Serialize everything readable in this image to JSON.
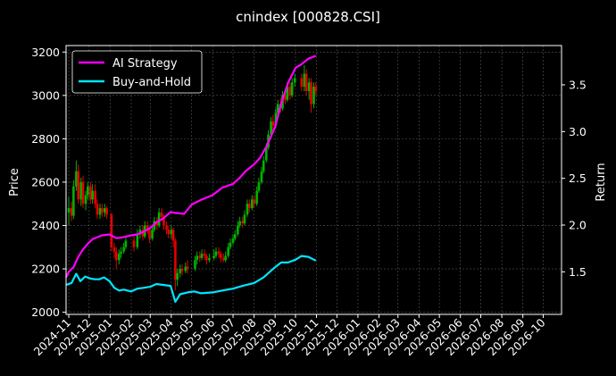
{
  "chart_data": {
    "type": "candlestick+line",
    "title": "cnindex [000828.CSI]",
    "ylabel_left": "Price",
    "ylabel_right": "Return",
    "xlabel": "",
    "ylim_left": [
      1990,
      3230
    ],
    "yticks_left": [
      2000,
      2200,
      2400,
      2600,
      2800,
      3000,
      3200
    ],
    "ylim_right": [
      1.045,
      3.92
    ],
    "yticks_right": [
      "1.5",
      "2.0",
      "2.5",
      "3.0",
      "3.5"
    ],
    "xlim": [
      "2024-10-28",
      "2026-10-28"
    ],
    "xticks": [
      "2024-11",
      "2024-12",
      "2025-01",
      "2025-02",
      "2025-03",
      "2025-04",
      "2025-05",
      "2025-06",
      "2025-07",
      "2025-08",
      "2025-09",
      "2025-10",
      "2025-11",
      "2025-12",
      "2026-01",
      "2026-02",
      "2026-03",
      "2026-04",
      "2026-05",
      "2026-06",
      "2026-07",
      "2026-08",
      "2026-09",
      "2026-10"
    ],
    "grid": true,
    "legend_position": "top-left",
    "colors": {
      "background": "#000000",
      "up": "#00b300",
      "down": "#e60000",
      "ai_strategy": "#ff00ff",
      "buy_and_hold": "#00e5ff",
      "grid": "#555555",
      "text": "#ffffff"
    },
    "series": [
      {
        "name": "AI Strategy",
        "axis": "right",
        "points": [
          [
            "2024-10-28",
            1.44
          ],
          [
            "2024-11-01",
            1.5
          ],
          [
            "2024-11-08",
            1.55
          ],
          [
            "2024-11-15",
            1.66
          ],
          [
            "2024-11-22",
            1.74
          ],
          [
            "2024-11-29",
            1.8
          ],
          [
            "2024-12-06",
            1.85
          ],
          [
            "2024-12-13",
            1.87
          ],
          [
            "2024-12-20",
            1.89
          ],
          [
            "2024-12-31",
            1.9
          ],
          [
            "2025-01-10",
            1.86
          ],
          [
            "2025-01-20",
            1.87
          ],
          [
            "2025-02-01",
            1.89
          ],
          [
            "2025-02-10",
            1.9
          ],
          [
            "2025-02-20",
            1.93
          ],
          [
            "2025-03-01",
            1.97
          ],
          [
            "2025-03-10",
            2.03
          ],
          [
            "2025-03-20",
            2.07
          ],
          [
            "2025-03-31",
            2.14
          ],
          [
            "2025-04-07",
            2.13
          ],
          [
            "2025-04-20",
            2.12
          ],
          [
            "2025-05-01",
            2.22
          ],
          [
            "2025-05-15",
            2.27
          ],
          [
            "2025-06-01",
            2.32
          ],
          [
            "2025-06-15",
            2.4
          ],
          [
            "2025-07-01",
            2.44
          ],
          [
            "2025-07-10",
            2.5
          ],
          [
            "2025-07-20",
            2.58
          ],
          [
            "2025-08-01",
            2.65
          ],
          [
            "2025-08-10",
            2.72
          ],
          [
            "2025-08-20",
            2.85
          ],
          [
            "2025-09-01",
            3.05
          ],
          [
            "2025-09-10",
            3.3
          ],
          [
            "2025-09-20",
            3.52
          ],
          [
            "2025-10-01",
            3.68
          ],
          [
            "2025-10-10",
            3.72
          ],
          [
            "2025-10-20",
            3.78
          ],
          [
            "2025-10-31",
            3.81
          ]
        ]
      },
      {
        "name": "Buy-and-Hold",
        "axis": "right",
        "points": [
          [
            "2024-10-28",
            1.36
          ],
          [
            "2024-11-05",
            1.38
          ],
          [
            "2024-11-12",
            1.48
          ],
          [
            "2024-11-18",
            1.4
          ],
          [
            "2024-11-25",
            1.45
          ],
          [
            "2024-12-02",
            1.43
          ],
          [
            "2024-12-09",
            1.42
          ],
          [
            "2024-12-16",
            1.42
          ],
          [
            "2024-12-23",
            1.44
          ],
          [
            "2024-12-31",
            1.4
          ],
          [
            "2025-01-07",
            1.33
          ],
          [
            "2025-01-14",
            1.3
          ],
          [
            "2025-01-21",
            1.31
          ],
          [
            "2025-02-01",
            1.29
          ],
          [
            "2025-02-10",
            1.32
          ],
          [
            "2025-02-20",
            1.33
          ],
          [
            "2025-03-01",
            1.34
          ],
          [
            "2025-03-10",
            1.37
          ],
          [
            "2025-03-20",
            1.36
          ],
          [
            "2025-03-31",
            1.35
          ],
          [
            "2025-04-07",
            1.18
          ],
          [
            "2025-04-14",
            1.26
          ],
          [
            "2025-04-25",
            1.28
          ],
          [
            "2025-05-05",
            1.29
          ],
          [
            "2025-05-15",
            1.27
          ],
          [
            "2025-06-01",
            1.28
          ],
          [
            "2025-06-15",
            1.3
          ],
          [
            "2025-07-01",
            1.32
          ],
          [
            "2025-07-15",
            1.35
          ],
          [
            "2025-08-01",
            1.38
          ],
          [
            "2025-08-15",
            1.44
          ],
          [
            "2025-09-01",
            1.55
          ],
          [
            "2025-09-10",
            1.6
          ],
          [
            "2025-09-20",
            1.6
          ],
          [
            "2025-10-01",
            1.63
          ],
          [
            "2025-10-10",
            1.67
          ],
          [
            "2025-10-20",
            1.66
          ],
          [
            "2025-10-31",
            1.62
          ]
        ]
      }
    ],
    "candles": [
      [
        "2024-11-01",
        2460,
        2480,
        2530,
        2400
      ],
      [
        "2024-11-05",
        2480,
        2445,
        2510,
        2420
      ],
      [
        "2024-11-08",
        2445,
        2580,
        2610,
        2430
      ],
      [
        "2024-11-12",
        2580,
        2650,
        2700,
        2560
      ],
      [
        "2024-11-15",
        2650,
        2520,
        2680,
        2500
      ],
      [
        "2024-11-19",
        2520,
        2600,
        2620,
        2490
      ],
      [
        "2024-11-22",
        2600,
        2500,
        2630,
        2480
      ],
      [
        "2024-11-26",
        2500,
        2540,
        2560,
        2470
      ],
      [
        "2024-11-29",
        2540,
        2580,
        2600,
        2520
      ],
      [
        "2024-12-03",
        2580,
        2520,
        2600,
        2500
      ],
      [
        "2024-12-06",
        2520,
        2560,
        2590,
        2500
      ],
      [
        "2024-12-10",
        2560,
        2500,
        2590,
        2480
      ],
      [
        "2024-12-13",
        2500,
        2450,
        2520,
        2430
      ],
      [
        "2024-12-17",
        2450,
        2480,
        2500,
        2430
      ],
      [
        "2024-12-20",
        2480,
        2460,
        2500,
        2440
      ],
      [
        "2024-12-24",
        2460,
        2480,
        2500,
        2440
      ],
      [
        "2024-12-27",
        2480,
        2450,
        2490,
        2430
      ],
      [
        "2025-01-03",
        2450,
        2300,
        2460,
        2280
      ],
      [
        "2025-01-07",
        2300,
        2280,
        2320,
        2250
      ],
      [
        "2025-01-10",
        2280,
        2240,
        2300,
        2200
      ],
      [
        "2025-01-14",
        2240,
        2270,
        2290,
        2220
      ],
      [
        "2025-01-17",
        2270,
        2280,
        2300,
        2250
      ],
      [
        "2025-01-21",
        2280,
        2300,
        2320,
        2270
      ],
      [
        "2025-01-24",
        2300,
        2330,
        2350,
        2290
      ],
      [
        "2025-02-05",
        2330,
        2300,
        2350,
        2280
      ],
      [
        "2025-02-10",
        2300,
        2360,
        2380,
        2290
      ],
      [
        "2025-02-14",
        2360,
        2380,
        2400,
        2340
      ],
      [
        "2025-02-18",
        2380,
        2350,
        2400,
        2330
      ],
      [
        "2025-02-21",
        2350,
        2400,
        2420,
        2340
      ],
      [
        "2025-02-25",
        2400,
        2380,
        2420,
        2360
      ],
      [
        "2025-02-28",
        2380,
        2340,
        2390,
        2320
      ],
      [
        "2025-03-04",
        2340,
        2380,
        2400,
        2330
      ],
      [
        "2025-03-07",
        2380,
        2420,
        2440,
        2370
      ],
      [
        "2025-03-11",
        2420,
        2400,
        2440,
        2380
      ],
      [
        "2025-03-14",
        2400,
        2460,
        2480,
        2390
      ],
      [
        "2025-03-18",
        2460,
        2440,
        2480,
        2420
      ],
      [
        "2025-03-21",
        2440,
        2400,
        2450,
        2380
      ],
      [
        "2025-03-25",
        2400,
        2380,
        2420,
        2360
      ],
      [
        "2025-03-28",
        2380,
        2360,
        2400,
        2340
      ],
      [
        "2025-04-01",
        2360,
        2380,
        2400,
        2340
      ],
      [
        "2025-04-04",
        2380,
        2330,
        2390,
        2300
      ],
      [
        "2025-04-07",
        2330,
        2150,
        2340,
        2100
      ],
      [
        "2025-04-10",
        2150,
        2180,
        2200,
        2120
      ],
      [
        "2025-04-14",
        2180,
        2200,
        2220,
        2160
      ],
      [
        "2025-04-17",
        2200,
        2190,
        2220,
        2170
      ],
      [
        "2025-04-22",
        2190,
        2210,
        2230,
        2180
      ],
      [
        "2025-04-25",
        2210,
        2200,
        2240,
        2180
      ],
      [
        "2025-05-06",
        2200,
        2240,
        2260,
        2190
      ],
      [
        "2025-05-09",
        2240,
        2260,
        2280,
        2220
      ],
      [
        "2025-05-13",
        2260,
        2250,
        2280,
        2230
      ],
      [
        "2025-05-16",
        2250,
        2270,
        2290,
        2240
      ],
      [
        "2025-05-20",
        2270,
        2260,
        2290,
        2240
      ],
      [
        "2025-05-23",
        2260,
        2240,
        2270,
        2220
      ],
      [
        "2025-05-27",
        2240,
        2250,
        2270,
        2230
      ],
      [
        "2025-06-03",
        2250,
        2260,
        2290,
        2240
      ],
      [
        "2025-06-06",
        2260,
        2280,
        2300,
        2250
      ],
      [
        "2025-06-10",
        2280,
        2270,
        2300,
        2250
      ],
      [
        "2025-06-13",
        2270,
        2250,
        2280,
        2230
      ],
      [
        "2025-06-17",
        2250,
        2240,
        2270,
        2230
      ],
      [
        "2025-06-20",
        2240,
        2260,
        2280,
        2230
      ],
      [
        "2025-06-24",
        2260,
        2300,
        2320,
        2250
      ],
      [
        "2025-06-27",
        2300,
        2320,
        2340,
        2290
      ],
      [
        "2025-07-01",
        2320,
        2340,
        2360,
        2310
      ],
      [
        "2025-07-04",
        2340,
        2360,
        2380,
        2330
      ],
      [
        "2025-07-08",
        2360,
        2400,
        2420,
        2350
      ],
      [
        "2025-07-11",
        2400,
        2420,
        2440,
        2390
      ],
      [
        "2025-07-15",
        2420,
        2410,
        2440,
        2390
      ],
      [
        "2025-07-18",
        2410,
        2450,
        2470,
        2400
      ],
      [
        "2025-07-22",
        2450,
        2500,
        2520,
        2440
      ],
      [
        "2025-07-25",
        2500,
        2480,
        2520,
        2460
      ],
      [
        "2025-07-29",
        2480,
        2520,
        2540,
        2470
      ],
      [
        "2025-08-01",
        2520,
        2500,
        2540,
        2480
      ],
      [
        "2025-08-05",
        2500,
        2560,
        2580,
        2490
      ],
      [
        "2025-08-08",
        2560,
        2600,
        2620,
        2550
      ],
      [
        "2025-08-12",
        2600,
        2650,
        2670,
        2590
      ],
      [
        "2025-08-15",
        2650,
        2700,
        2720,
        2640
      ],
      [
        "2025-08-19",
        2700,
        2760,
        2780,
        2690
      ],
      [
        "2025-08-22",
        2760,
        2820,
        2840,
        2750
      ],
      [
        "2025-08-26",
        2820,
        2880,
        2900,
        2800
      ],
      [
        "2025-08-29",
        2880,
        2860,
        2910,
        2840
      ],
      [
        "2025-09-02",
        2860,
        2920,
        2940,
        2850
      ],
      [
        "2025-09-05",
        2920,
        2960,
        2980,
        2900
      ],
      [
        "2025-09-09",
        2960,
        2940,
        2990,
        2920
      ],
      [
        "2025-09-12",
        2940,
        3000,
        3020,
        2930
      ],
      [
        "2025-09-16",
        3000,
        2980,
        3030,
        2960
      ],
      [
        "2025-09-19",
        2980,
        3040,
        3060,
        2970
      ],
      [
        "2025-09-23",
        3040,
        3000,
        3060,
        2980
      ],
      [
        "2025-09-26",
        3000,
        3060,
        3080,
        2990
      ],
      [
        "2025-09-30",
        3060,
        3080,
        3100,
        3040
      ],
      [
        "2025-10-10",
        3080,
        3040,
        3100,
        3020
      ],
      [
        "2025-10-14",
        3040,
        3100,
        3140,
        3020
      ],
      [
        "2025-10-17",
        3100,
        3020,
        3120,
        3000
      ],
      [
        "2025-10-21",
        3020,
        3060,
        3080,
        2980
      ],
      [
        "2025-10-24",
        3060,
        2960,
        3080,
        2920
      ],
      [
        "2025-10-28",
        2960,
        3040,
        3060,
        2940
      ],
      [
        "2025-10-31",
        3040,
        3020,
        3060,
        3000
      ]
    ]
  }
}
